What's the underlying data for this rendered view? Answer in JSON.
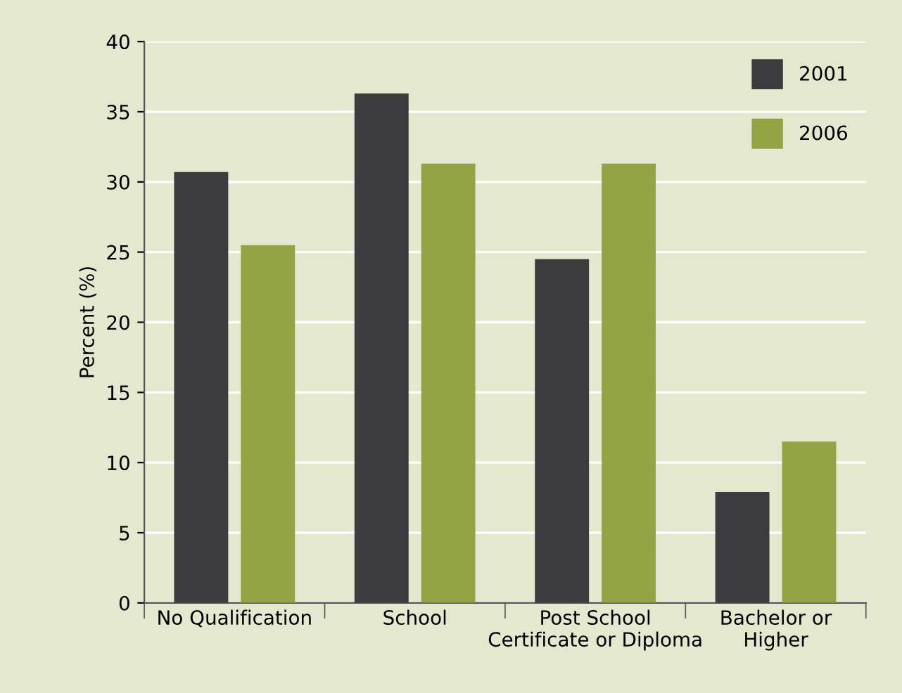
{
  "chart_data": {
    "type": "bar",
    "ylabel": "Percent (%)",
    "categories": [
      "No Qualification",
      "School",
      "Post School\nCertificate or Diploma",
      "Bachelor or\nHigher"
    ],
    "series": [
      {
        "name": "2001",
        "color": "#3c3c3f",
        "values": [
          30.7,
          36.3,
          24.5,
          7.9
        ]
      },
      {
        "name": "2006",
        "color": "#93a444",
        "values": [
          25.5,
          31.3,
          31.3,
          11.5
        ]
      }
    ],
    "ylim": [
      0,
      40
    ],
    "yticks": [
      0,
      5,
      10,
      15,
      20,
      25,
      30,
      35,
      40
    ],
    "grid": "y",
    "legend": "top right"
  }
}
